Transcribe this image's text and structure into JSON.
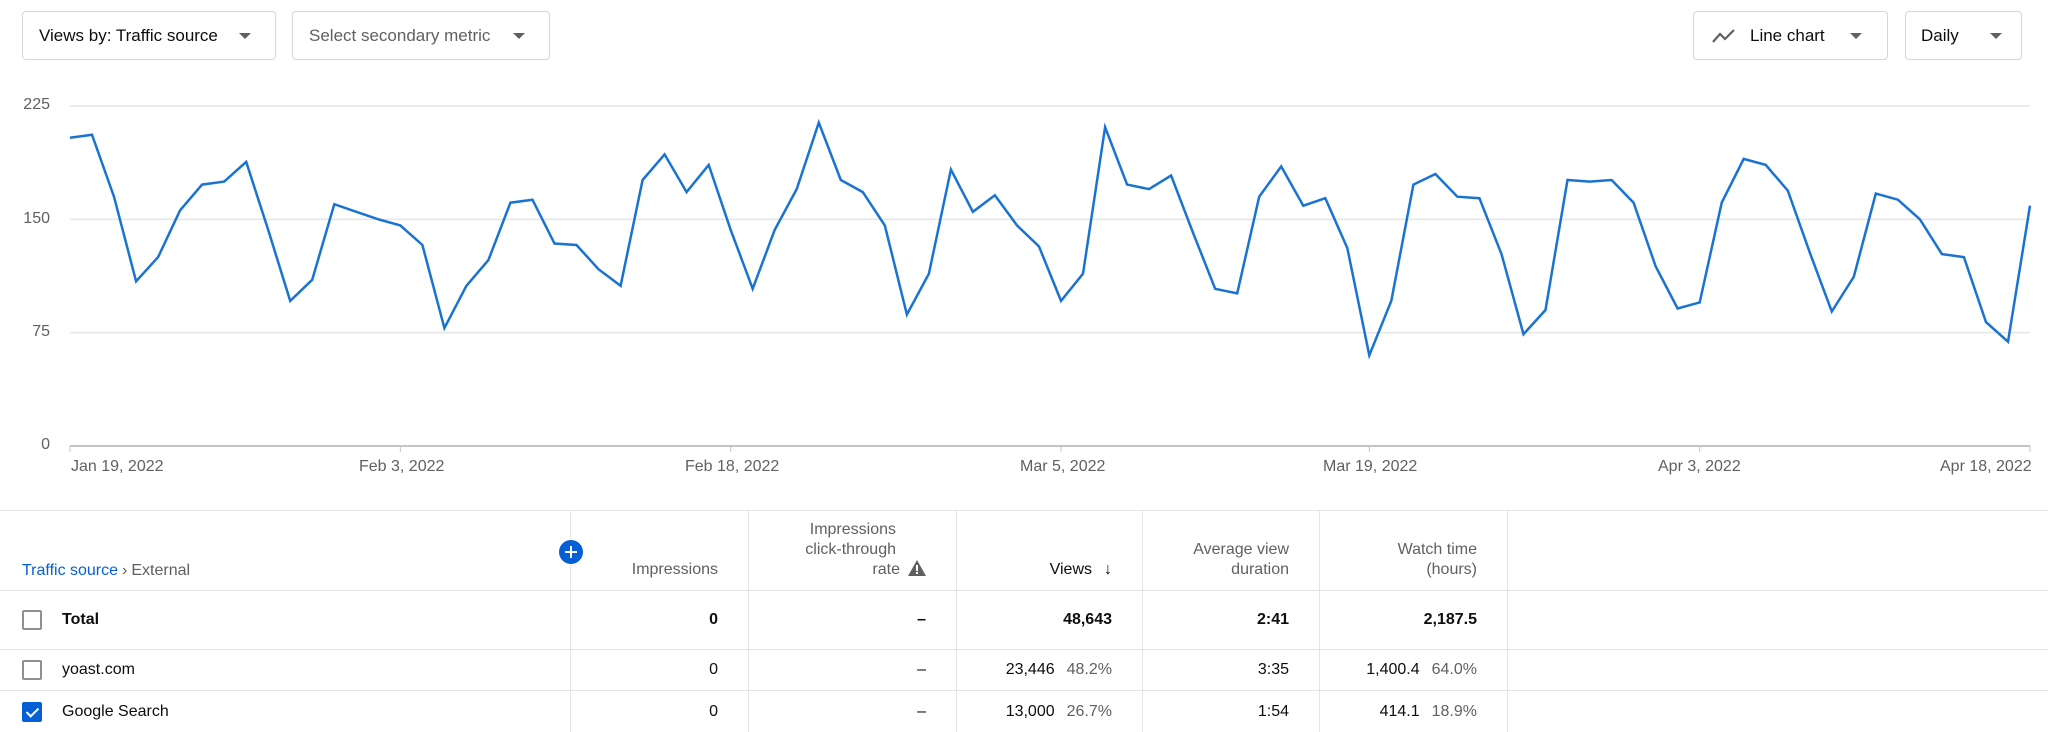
{
  "toolbar": {
    "primary_metric": "Views by: Traffic source",
    "secondary_metric_placeholder": "Select secondary metric",
    "chart_type": "Line chart",
    "chart_type_icon": "line-chart-icon",
    "period": "Daily"
  },
  "colors": {
    "line": "#1a73d1",
    "accent": "#065fd4",
    "gridline": "#e5e5e5",
    "axis_text": "#606060"
  },
  "chart_data": {
    "type": "line",
    "title": "",
    "xlabel": "",
    "ylabel": "Views",
    "ylim": [
      0,
      225
    ],
    "yticks": [
      "225",
      "150",
      "75",
      "0"
    ],
    "xticks": [
      "Jan 19, 2022",
      "Feb 3, 2022",
      "Feb 18, 2022",
      "Mar 5, 2022",
      "Mar 19, 2022",
      "Apr 3, 2022",
      "Apr 18, 2022"
    ],
    "x_start": "Jan 19, 2022",
    "x_end": "Apr 18, 2022",
    "grid": true,
    "legend": false,
    "series": [
      {
        "name": "Views",
        "values": [
          204,
          206,
          165,
          109,
          125,
          156,
          173,
          175,
          188,
          143,
          96,
          110,
          160,
          155,
          150,
          146,
          133,
          78,
          106,
          123,
          161,
          163,
          134,
          133,
          117,
          106,
          176,
          193,
          168,
          186,
          143,
          104,
          143,
          170,
          214,
          176,
          168,
          146,
          87,
          114,
          183,
          155,
          166,
          146,
          132,
          96,
          114,
          211,
          173,
          170,
          179,
          141,
          104,
          101,
          165,
          185,
          159,
          164,
          131,
          60,
          96,
          173,
          180,
          165,
          164,
          127,
          74,
          90,
          176,
          175,
          176,
          161,
          119,
          91,
          95,
          161,
          190,
          186,
          169,
          128,
          89,
          112,
          167,
          163,
          150,
          127,
          125,
          82,
          69,
          159
        ]
      }
    ]
  },
  "table": {
    "breadcrumb": {
      "root": "Traffic source",
      "separator": "›",
      "current": "External"
    },
    "add_column_icon": "plus-circle-icon",
    "headers": {
      "impressions": "Impressions",
      "ctr_line1": "Impressions",
      "ctr_line2": "click-through",
      "ctr_line3": "rate",
      "ctr_icon": "warning-icon",
      "views": "Views",
      "views_sort_icon": "arrow-down-icon",
      "avd_line1": "Average view",
      "avd_line2": "duration",
      "watch_line1": "Watch time",
      "watch_line2": "(hours)"
    },
    "total": {
      "label": "Total",
      "checked": false,
      "impressions": "0",
      "ctr": "–",
      "views": "48,643",
      "avd": "2:41",
      "watch": "2,187.5"
    },
    "rows": [
      {
        "label": "yoast.com",
        "checked": false,
        "impressions": "0",
        "ctr": "–",
        "views": "23,446",
        "views_pct": "48.2%",
        "avd": "3:35",
        "watch": "1,400.4",
        "watch_pct": "64.0%"
      },
      {
        "label": "Google Search",
        "checked": true,
        "impressions": "0",
        "ctr": "–",
        "views": "13,000",
        "views_pct": "26.7%",
        "avd": "1:54",
        "watch": "414.1",
        "watch_pct": "18.9%"
      }
    ]
  }
}
